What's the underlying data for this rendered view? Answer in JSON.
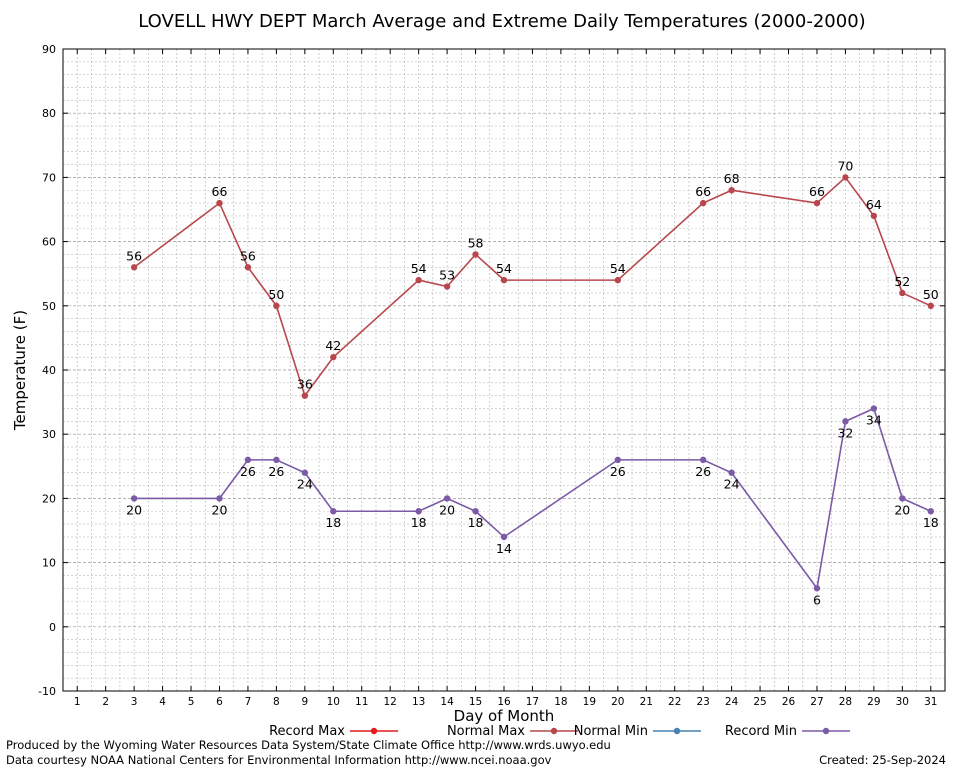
{
  "chart_data": {
    "type": "line",
    "title": "LOVELL HWY DEPT March Average and Extreme Daily Temperatures (2000-2000)",
    "xlabel": "Day of Month",
    "ylabel": "Temperature (F)",
    "xlim": [
      0.5,
      31.5
    ],
    "ylim": [
      -10,
      90
    ],
    "x_ticks": [
      1,
      2,
      3,
      4,
      5,
      6,
      7,
      8,
      9,
      10,
      11,
      12,
      13,
      14,
      15,
      16,
      17,
      18,
      19,
      20,
      21,
      22,
      23,
      24,
      25,
      26,
      27,
      28,
      29,
      30,
      31
    ],
    "y_ticks": [
      -10,
      0,
      10,
      20,
      30,
      40,
      50,
      60,
      70,
      80,
      90
    ],
    "grid": true,
    "legend_position": "bottom",
    "series": [
      {
        "name": "Record Max",
        "color": "#e41a1c",
        "points": []
      },
      {
        "name": "Normal Max",
        "color": "#b8474d",
        "label_position": "above",
        "points": [
          {
            "x": 3,
            "y": 56
          },
          {
            "x": 6,
            "y": 66
          },
          {
            "x": 7,
            "y": 56
          },
          {
            "x": 8,
            "y": 50
          },
          {
            "x": 9,
            "y": 36
          },
          {
            "x": 10,
            "y": 42
          },
          {
            "x": 13,
            "y": 54
          },
          {
            "x": 14,
            "y": 53
          },
          {
            "x": 15,
            "y": 58
          },
          {
            "x": 16,
            "y": 54
          },
          {
            "x": 20,
            "y": 54
          },
          {
            "x": 23,
            "y": 66
          },
          {
            "x": 24,
            "y": 68
          },
          {
            "x": 27,
            "y": 66
          },
          {
            "x": 28,
            "y": 70
          },
          {
            "x": 29,
            "y": 64
          },
          {
            "x": 30,
            "y": 52
          },
          {
            "x": 31,
            "y": 50
          }
        ]
      },
      {
        "name": "Normal Min",
        "color": "#4682b4",
        "points": []
      },
      {
        "name": "Record Min",
        "color": "#7b5aa6",
        "label_position": "below",
        "points": [
          {
            "x": 3,
            "y": 20
          },
          {
            "x": 6,
            "y": 20
          },
          {
            "x": 7,
            "y": 26
          },
          {
            "x": 8,
            "y": 26
          },
          {
            "x": 9,
            "y": 24
          },
          {
            "x": 10,
            "y": 18
          },
          {
            "x": 13,
            "y": 18
          },
          {
            "x": 14,
            "y": 20
          },
          {
            "x": 15,
            "y": 18
          },
          {
            "x": 16,
            "y": 14
          },
          {
            "x": 20,
            "y": 26
          },
          {
            "x": 23,
            "y": 26
          },
          {
            "x": 24,
            "y": 24
          },
          {
            "x": 27,
            "y": 6
          },
          {
            "x": 28,
            "y": 32
          },
          {
            "x": 29,
            "y": 34
          },
          {
            "x": 30,
            "y": 20
          },
          {
            "x": 31,
            "y": 18
          }
        ]
      }
    ]
  },
  "footer": {
    "produced_by": "Produced by the Wyoming Water Resources Data System/State Climate Office http://www.wrds.uwyo.edu",
    "data_courtesy": "Data courtesy NOAA National Centers for Environmental Information http://www.ncei.noaa.gov",
    "created": "Created:  25-Sep-2024"
  }
}
